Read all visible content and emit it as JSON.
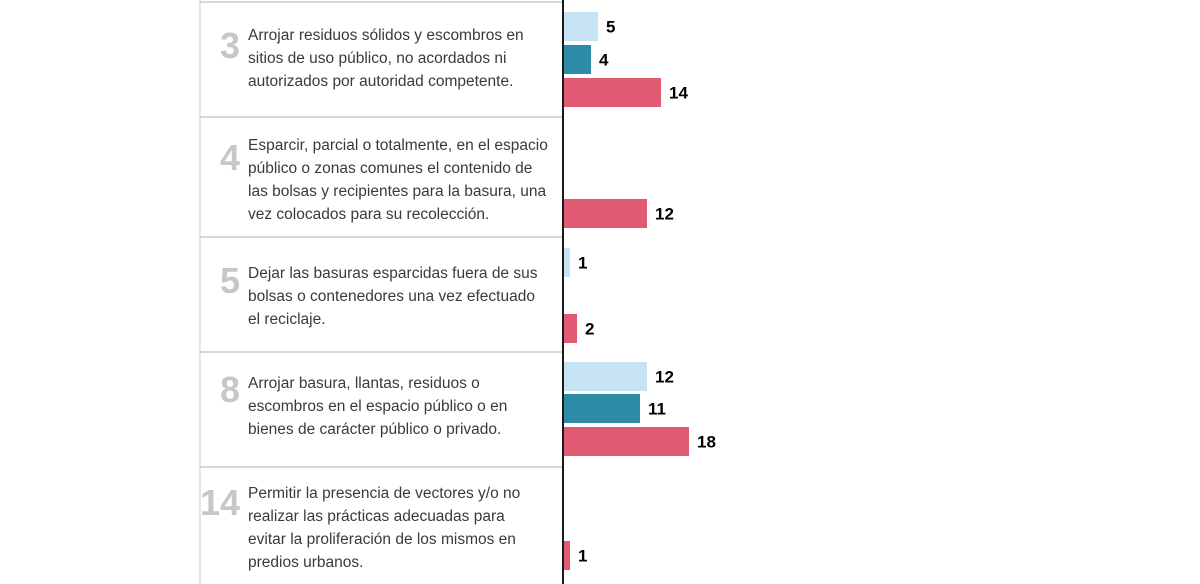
{
  "colors": {
    "series1": "#c5e3f3",
    "series2": "#2e8ba6",
    "series3": "#e05a72",
    "frame": "#cccccc",
    "axis": "#1a1a1a",
    "number_text": "#c7c7c7"
  },
  "chart_data": {
    "type": "bar",
    "orientation": "horizontal",
    "categories": [
      {
        "number": "3",
        "lines": [
          "Arrojar residuos sólidos y escombros en",
          "sitios de uso público, no acordados ni",
          "autorizados por autoridad competente."
        ]
      },
      {
        "number": "4",
        "lines": [
          "Esparcir, parcial o totalmente, en el espacio",
          "público o zonas comunes el contenido de",
          "las bolsas y recipientes para la basura, una",
          "vez colocados para su recolección."
        ]
      },
      {
        "number": "5",
        "lines": [
          "Dejar las basuras esparcidas fuera de sus",
          "bolsas o contenedores una vez efectuado",
          "el reciclaje."
        ]
      },
      {
        "number": "8",
        "lines": [
          "Arrojar basura, llantas, residuos o",
          "escombros en el espacio público o en",
          "bienes de carácter público o privado."
        ]
      },
      {
        "number": "14",
        "lines": [
          "Permitir la presencia de vectores y/o no",
          "realizar las prácticas adecuadas para",
          "evitar la proliferación de los mismos en",
          "predios urbanos."
        ]
      }
    ],
    "series": [
      {
        "name": "series-1",
        "values": [
          5,
          null,
          1,
          12,
          null
        ]
      },
      {
        "name": "series-2",
        "values": [
          4,
          null,
          null,
          11,
          null
        ]
      },
      {
        "name": "series-3",
        "values": [
          14,
          12,
          2,
          18,
          1
        ]
      }
    ],
    "xlim": [
      0,
      20
    ],
    "title": "",
    "xlabel": "",
    "ylabel": ""
  }
}
